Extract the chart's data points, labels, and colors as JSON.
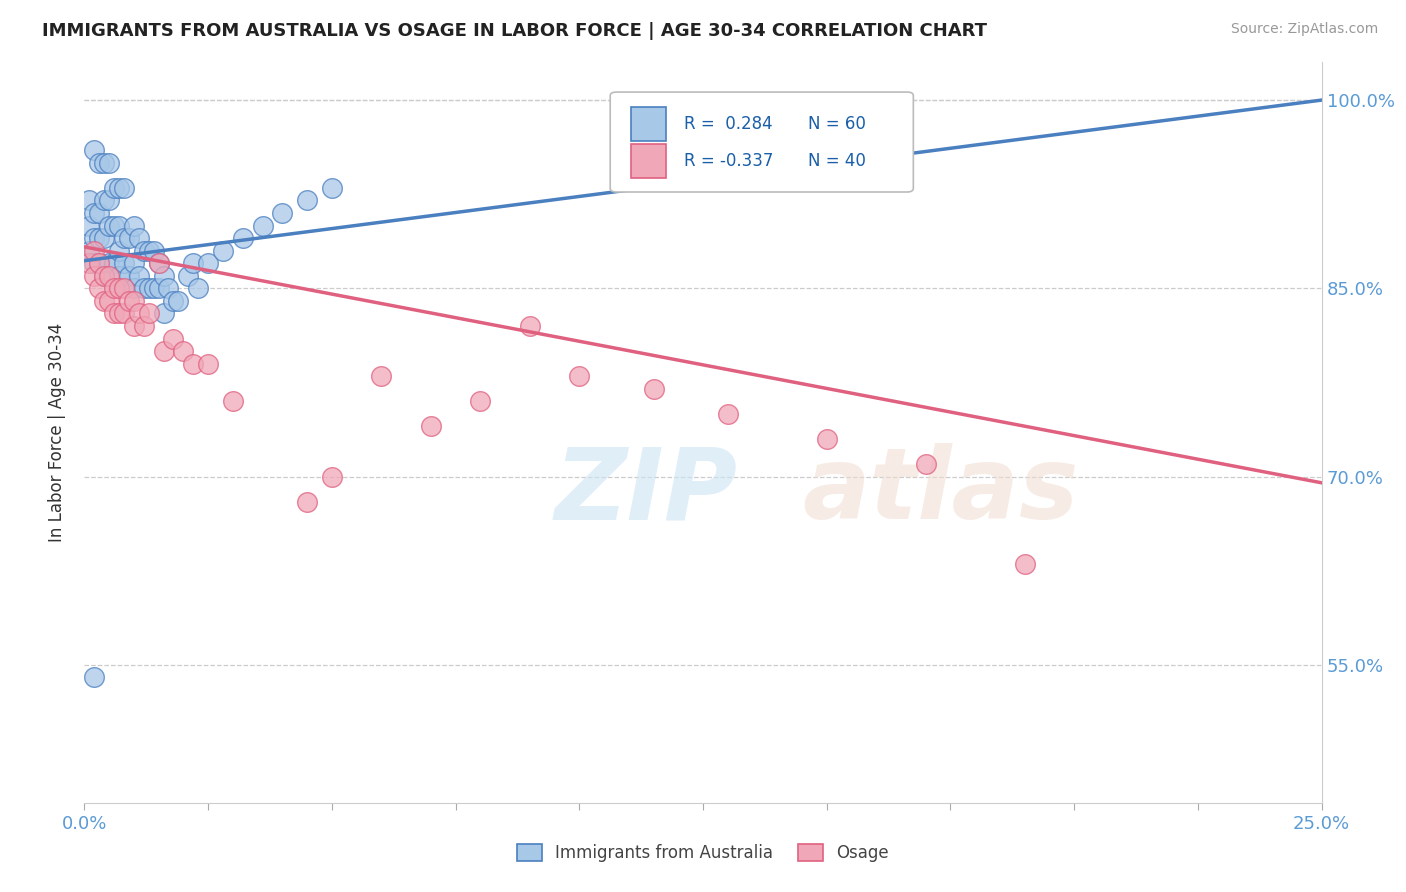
{
  "title": "IMMIGRANTS FROM AUSTRALIA VS OSAGE IN LABOR FORCE | AGE 30-34 CORRELATION CHART",
  "source": "Source: ZipAtlas.com",
  "ylabel": "In Labor Force | Age 30-34",
  "xlim": [
    0.0,
    0.25
  ],
  "ylim": [
    0.44,
    1.03
  ],
  "xtick_positions": [
    0.0,
    0.025,
    0.05,
    0.075,
    0.1,
    0.125,
    0.15,
    0.175,
    0.2,
    0.225,
    0.25
  ],
  "xtick_labels": [
    "0.0%",
    "",
    "",
    "",
    "",
    "",
    "",
    "",
    "",
    "",
    "25.0%"
  ],
  "ytick_positions": [
    0.55,
    0.7,
    0.85,
    1.0
  ],
  "ytick_labels": [
    "55.0%",
    "70.0%",
    "85.0%",
    "100.0%"
  ],
  "australia_color": "#a8c8e8",
  "osage_color": "#f0a8b8",
  "australia_line_color": "#4a7fc0",
  "osage_line_color": "#e06080",
  "aus_line_x0": 0.0,
  "aus_line_y0": 0.872,
  "aus_line_x1": 0.25,
  "aus_line_y1": 1.0,
  "osage_line_x0": 0.0,
  "osage_line_y0": 0.883,
  "osage_line_x1": 0.25,
  "osage_line_y1": 0.695,
  "australia_x": [
    0.001,
    0.001,
    0.001,
    0.002,
    0.002,
    0.002,
    0.002,
    0.003,
    0.003,
    0.003,
    0.003,
    0.004,
    0.004,
    0.004,
    0.004,
    0.005,
    0.005,
    0.005,
    0.005,
    0.006,
    0.006,
    0.006,
    0.007,
    0.007,
    0.007,
    0.007,
    0.008,
    0.008,
    0.008,
    0.009,
    0.009,
    0.01,
    0.01,
    0.01,
    0.011,
    0.011,
    0.012,
    0.012,
    0.013,
    0.013,
    0.014,
    0.014,
    0.015,
    0.015,
    0.016,
    0.016,
    0.017,
    0.018,
    0.019,
    0.021,
    0.022,
    0.023,
    0.025,
    0.028,
    0.032,
    0.036,
    0.04,
    0.045,
    0.05,
    0.002
  ],
  "australia_y": [
    0.88,
    0.9,
    0.92,
    0.87,
    0.89,
    0.91,
    0.96,
    0.87,
    0.89,
    0.91,
    0.95,
    0.86,
    0.89,
    0.92,
    0.95,
    0.87,
    0.9,
    0.92,
    0.95,
    0.87,
    0.9,
    0.93,
    0.86,
    0.88,
    0.9,
    0.93,
    0.87,
    0.89,
    0.93,
    0.86,
    0.89,
    0.85,
    0.87,
    0.9,
    0.86,
    0.89,
    0.85,
    0.88,
    0.85,
    0.88,
    0.85,
    0.88,
    0.85,
    0.87,
    0.83,
    0.86,
    0.85,
    0.84,
    0.84,
    0.86,
    0.87,
    0.85,
    0.87,
    0.88,
    0.89,
    0.9,
    0.91,
    0.92,
    0.93,
    0.54
  ],
  "osage_x": [
    0.001,
    0.002,
    0.002,
    0.003,
    0.003,
    0.004,
    0.004,
    0.005,
    0.005,
    0.006,
    0.006,
    0.007,
    0.007,
    0.008,
    0.008,
    0.009,
    0.01,
    0.01,
    0.011,
    0.012,
    0.013,
    0.015,
    0.016,
    0.018,
    0.02,
    0.022,
    0.025,
    0.03,
    0.05,
    0.06,
    0.08,
    0.1,
    0.115,
    0.13,
    0.15,
    0.17,
    0.19,
    0.045,
    0.07,
    0.09
  ],
  "osage_y": [
    0.87,
    0.86,
    0.88,
    0.85,
    0.87,
    0.84,
    0.86,
    0.84,
    0.86,
    0.83,
    0.85,
    0.83,
    0.85,
    0.83,
    0.85,
    0.84,
    0.82,
    0.84,
    0.83,
    0.82,
    0.83,
    0.87,
    0.8,
    0.81,
    0.8,
    0.79,
    0.79,
    0.76,
    0.7,
    0.78,
    0.76,
    0.78,
    0.77,
    0.75,
    0.73,
    0.71,
    0.63,
    0.68,
    0.74,
    0.82
  ]
}
